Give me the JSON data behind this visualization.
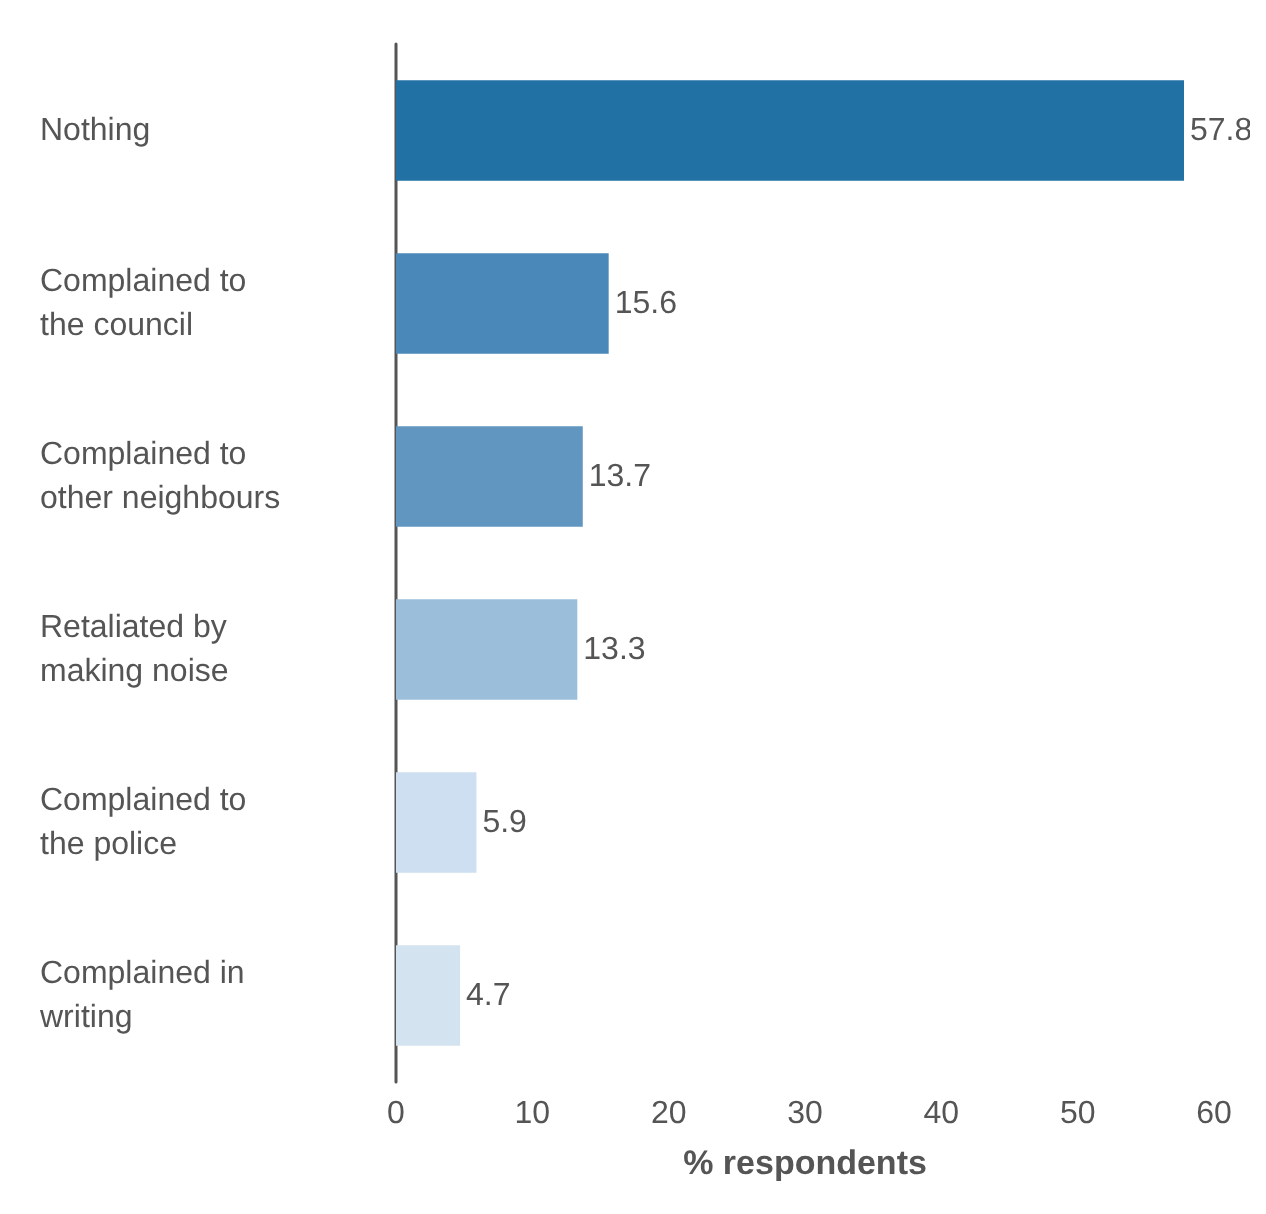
{
  "chart_data": {
    "type": "bar",
    "orientation": "horizontal",
    "xlabel": "% respondents",
    "categories": [
      "Nothing",
      "Complained to the council",
      "Complained to other neighbours",
      "Retaliated by making noise",
      "Complained to the police",
      "Complained in writing"
    ],
    "values": [
      57.8,
      15.6,
      13.7,
      13.3,
      5.9,
      4.7
    ],
    "colors": [
      "#2271a4",
      "#4a88b9",
      "#6196c1",
      "#9bbedb",
      "#cddff0",
      "#d4e3f0"
    ],
    "xlim": [
      0,
      60
    ],
    "xticks": [
      0,
      10,
      20,
      30,
      40,
      50,
      60
    ],
    "data_labels": true,
    "grid": false
  }
}
